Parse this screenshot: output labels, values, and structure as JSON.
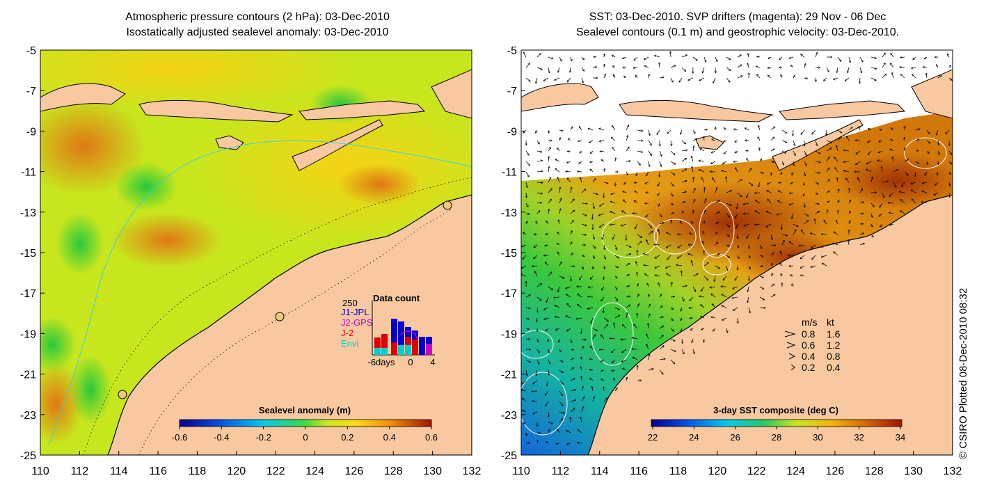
{
  "left_panel": {
    "title_line1": "Atmospheric pressure contours (2 hPa): 03-Dec-2010",
    "title_line2": "Isostatically adjusted sealevel anomaly: 03-Dec-2010",
    "colorbar": {
      "label": "Sealevel anomaly (m)",
      "ticks": [
        "-0.6",
        "-0.4",
        "-0.2",
        "0",
        "0.2",
        "0.4",
        "0.6"
      ]
    },
    "data_count": {
      "title": "Data count",
      "max_label": "250",
      "missions": [
        {
          "name": "J1-JPL",
          "color": "#0000cc"
        },
        {
          "name": "J2-GPS",
          "color": "#cc00cc"
        },
        {
          "name": "J-2",
          "color": "#dd0000"
        },
        {
          "name": "Envi",
          "color": "#00cccc"
        }
      ],
      "x_labels": [
        "-6days",
        "0",
        "4"
      ]
    }
  },
  "right_panel": {
    "title_line1": "SST: 03-Dec-2010. SVP drifters (magenta): 29 Nov - 06 Dec",
    "title_line2": "Sealevel contours (0.1 m) and geostrophic velocity: 03-Dec-2010.",
    "colorbar": {
      "label": "3-day SST composite (deg C)",
      "ticks": [
        "22",
        "24",
        "26",
        "28",
        "30",
        "32",
        "34"
      ]
    },
    "velocity_legend": {
      "header_ms": "m/s",
      "header_kt": "kt",
      "rows": [
        {
          "ms": "0.8",
          "kt": "1.6"
        },
        {
          "ms": "0.6",
          "kt": "1.2"
        },
        {
          "ms": "0.4",
          "kt": "0.8"
        },
        {
          "ms": "0.2",
          "kt": "0.4"
        }
      ]
    }
  },
  "axes": {
    "lat_ticks": [
      "-5",
      "-7",
      "-9",
      "-11",
      "-13",
      "-15",
      "-17",
      "-19",
      "-21",
      "-23",
      "-25"
    ],
    "lon_ticks": [
      "110",
      "112",
      "114",
      "116",
      "118",
      "120",
      "122",
      "124",
      "126",
      "128",
      "130",
      "132"
    ]
  },
  "credit": "© CSIRO Plotted 08-Dec-2010 08:32",
  "colors": {
    "land": "#f8c8a0",
    "sla_base": "#c8e61e",
    "sst_warm": "#d2780a"
  }
}
